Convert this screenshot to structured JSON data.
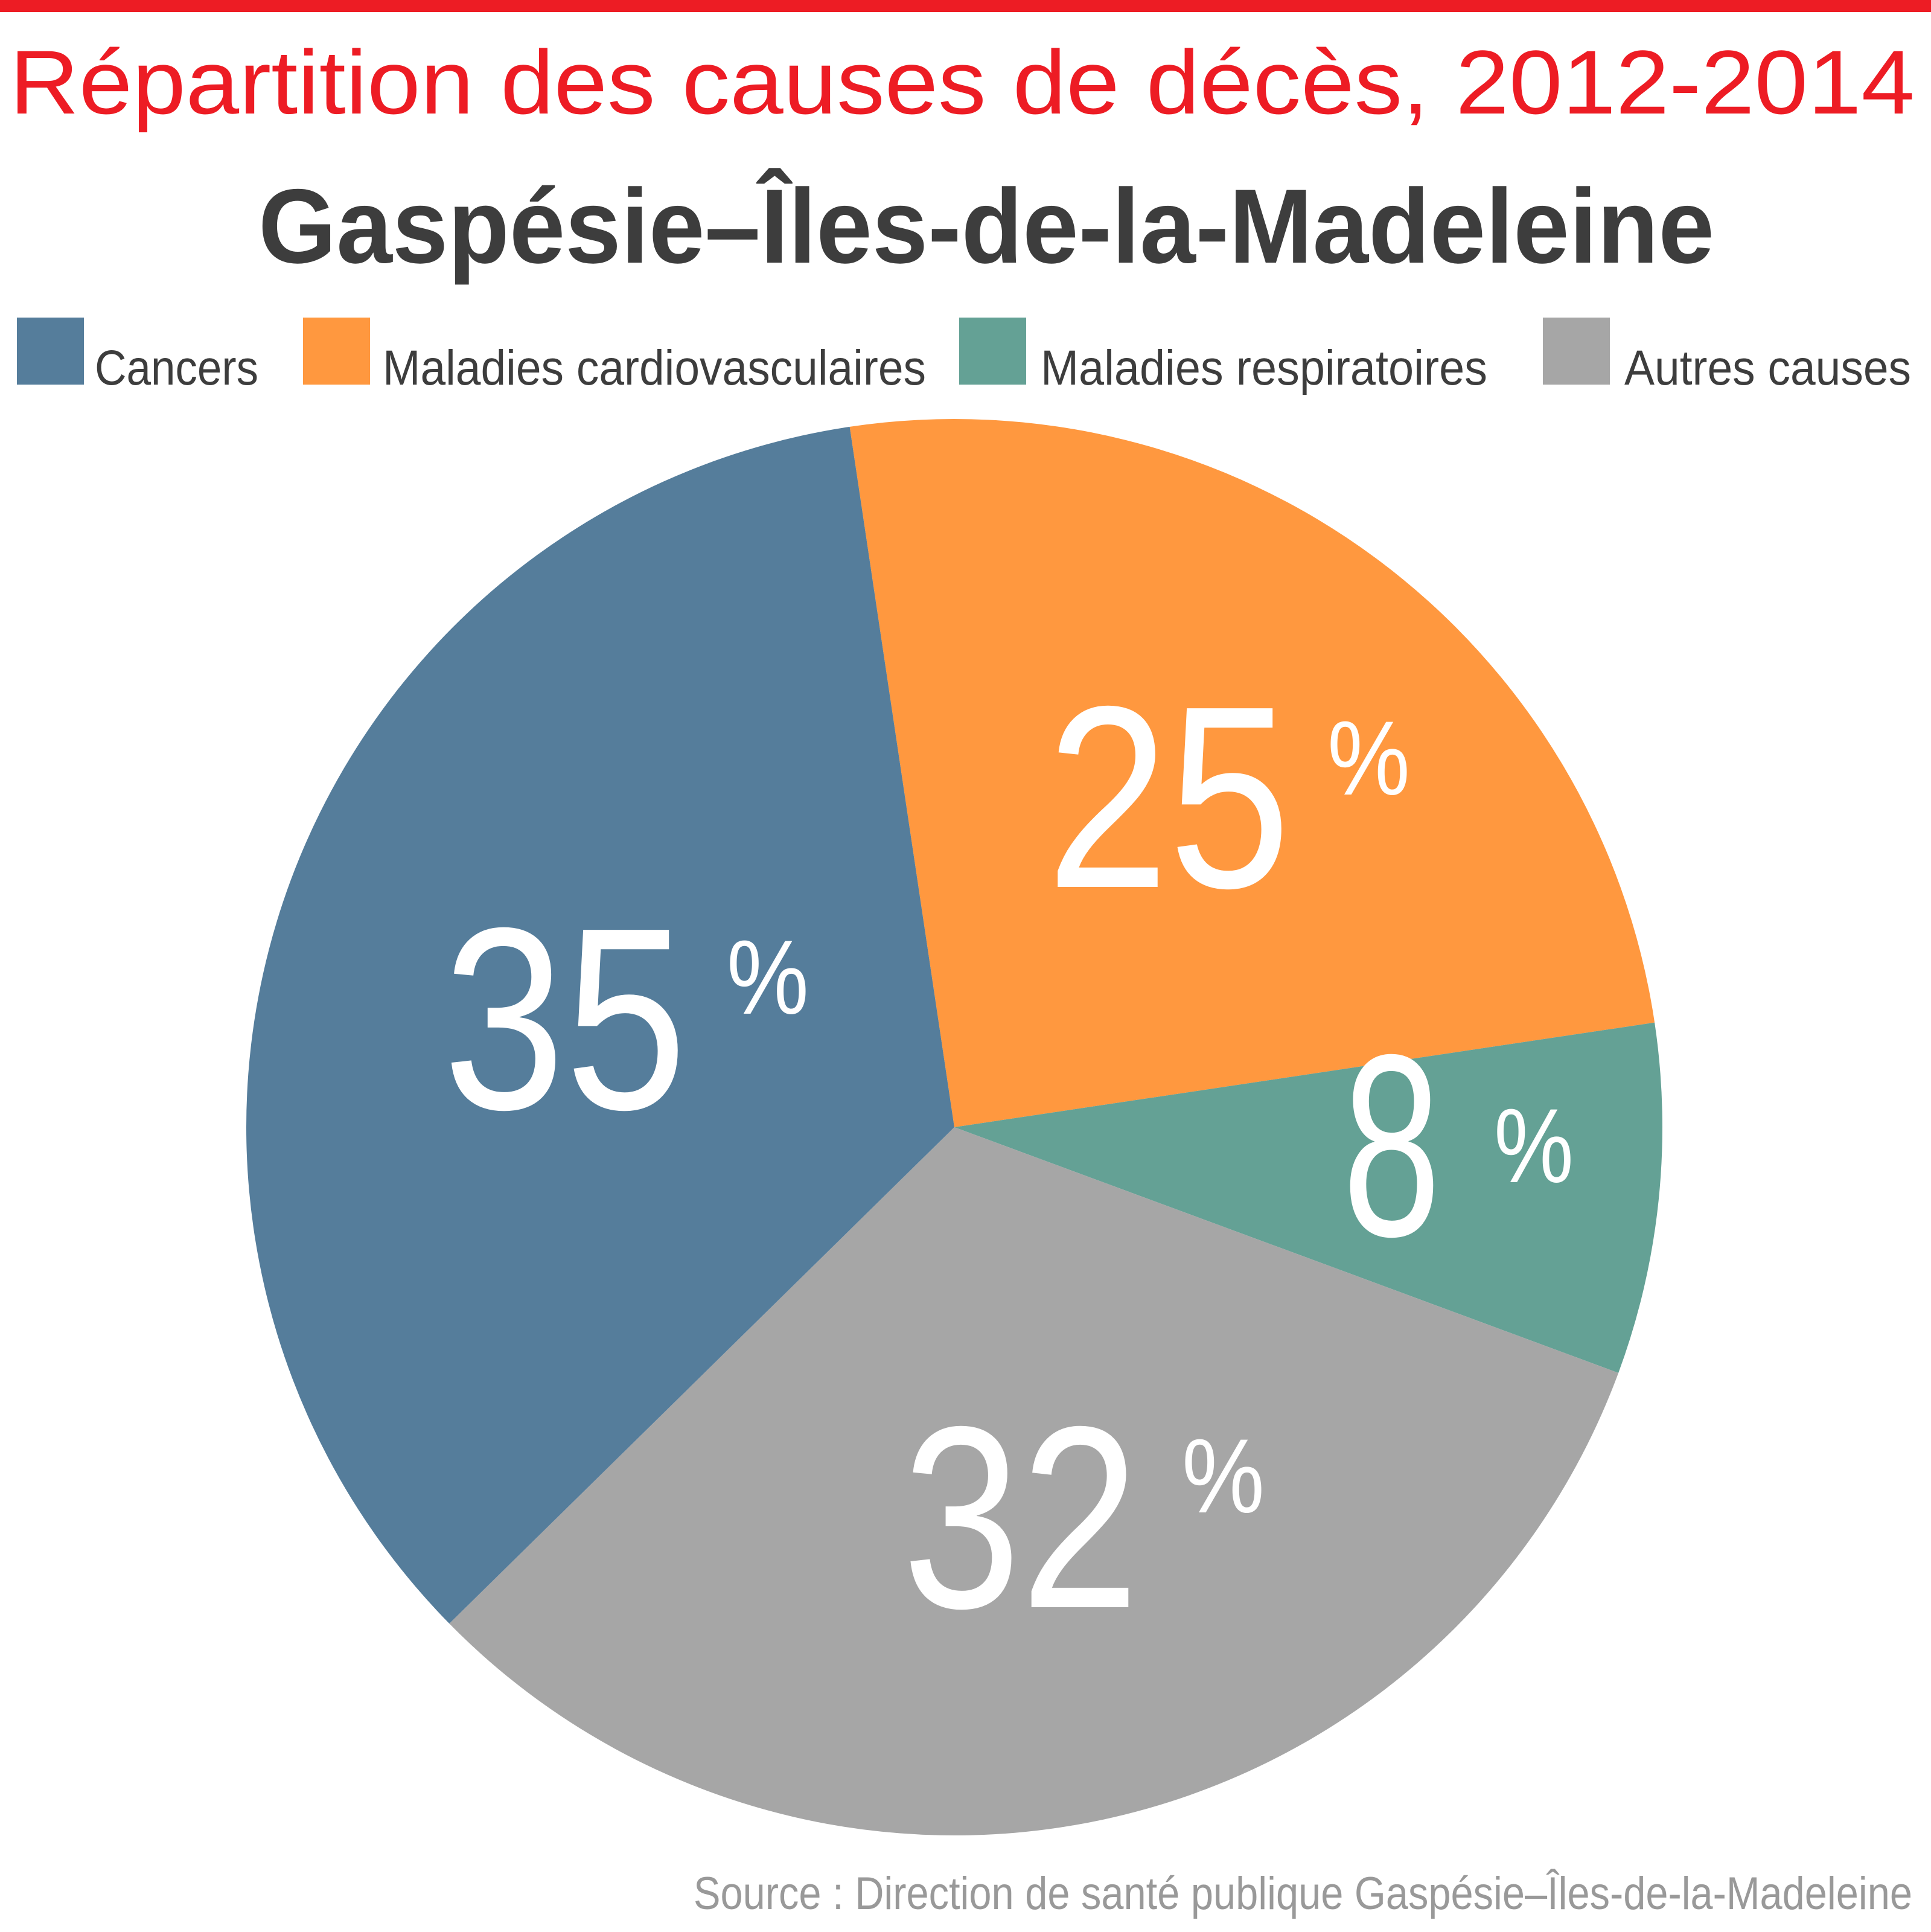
{
  "chart_data": {
    "type": "pie",
    "title": "Répartition des causes de décès, 2012-2014",
    "subtitle": "Gaspésie–Îles-de-la-Madeleine",
    "legend_position": "top",
    "slices": [
      {
        "label": "Cancers",
        "value": 35,
        "display": "35",
        "unit": "%",
        "color": "#557d9b"
      },
      {
        "label": "Maladies cardiovasculaires",
        "value": 25,
        "display": "25",
        "unit": "%",
        "color": "#ff983f"
      },
      {
        "label": "Maladies respiratoires",
        "value": 8,
        "display": "8",
        "unit": "%",
        "color": "#64a195"
      },
      {
        "label": "Autres causes",
        "value": 32,
        "display": "32",
        "unit": "%",
        "color": "#a6a6a6"
      }
    ],
    "source": "Source : Direction de santé publique Gaspésie–Îles-de-la-Madeleine"
  },
  "colors": {
    "accent": "#ed1c24",
    "text": "#3d3d3d"
  }
}
